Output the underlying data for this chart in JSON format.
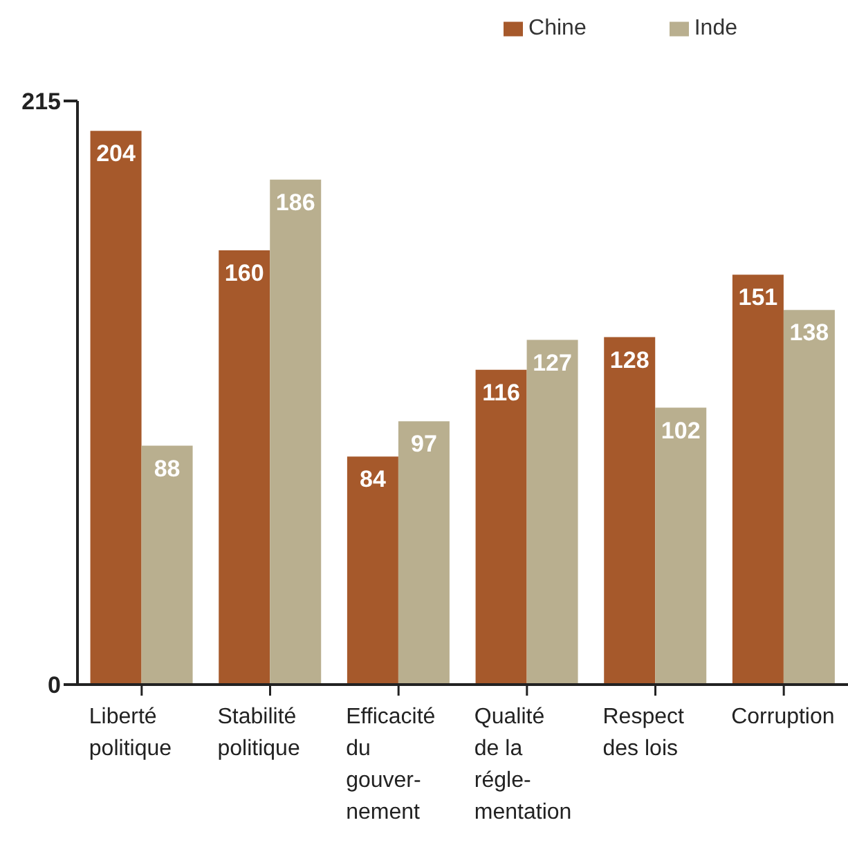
{
  "chart_data": {
    "type": "bar",
    "categories": [
      "Liberté politique",
      "Stabilité politique",
      "Efficacité du gouver-nement",
      "Qualité de la régle-mentation",
      "Respect des lois",
      "Corruption"
    ],
    "series": [
      {
        "name": "Chine",
        "color": "#a6592b",
        "values": [
          204,
          160,
          84,
          116,
          128,
          151
        ]
      },
      {
        "name": "Inde",
        "color": "#b9af8f",
        "values": [
          88,
          186,
          97,
          127,
          102,
          138
        ]
      }
    ],
    "ylim": [
      0,
      215
    ],
    "yticks": [
      0,
      215
    ],
    "data_labels": true,
    "legend": "top right",
    "grid": false
  }
}
